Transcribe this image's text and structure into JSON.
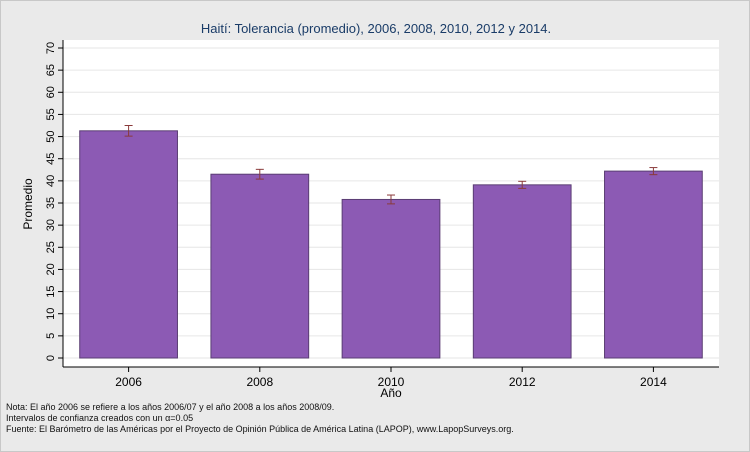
{
  "chart_data": {
    "type": "bar",
    "title": "Haití: Tolerancia (promedio), 2006, 2008, 2010, 2012 y 2014.",
    "xlabel": "Año",
    "ylabel": "Promedio",
    "categories": [
      "2006",
      "2008",
      "2010",
      "2012",
      "2014"
    ],
    "values": [
      51.3,
      41.5,
      35.8,
      39.1,
      42.2
    ],
    "ci_low": [
      50.1,
      40.4,
      34.8,
      38.3,
      41.4
    ],
    "ci_high": [
      52.5,
      42.6,
      36.8,
      39.9,
      43.0
    ],
    "ylim": [
      0,
      70
    ],
    "yticks": [
      0,
      5,
      10,
      15,
      20,
      25,
      30,
      35,
      40,
      45,
      50,
      55,
      60,
      65,
      70
    ],
    "grid": true,
    "colors": {
      "bar_fill": "#8c5ab4",
      "bar_stroke": "#5a3d73",
      "error_bar": "#8a3a3a",
      "plot_bg": "#ffffff",
      "grid": "#e6e6e6",
      "title": "#1a3c68"
    }
  },
  "notes": [
    "Nota: El año 2006 se refiere a los años 2006/07 y el año 2008 a los años 2008/09.",
    "Intervalos de confianza creados con un α=0.05",
    "Fuente: El Barómetro de las Américas por el Proyecto de Opinión Pública de América Latina (LAPOP), www.LapopSurveys.org."
  ]
}
